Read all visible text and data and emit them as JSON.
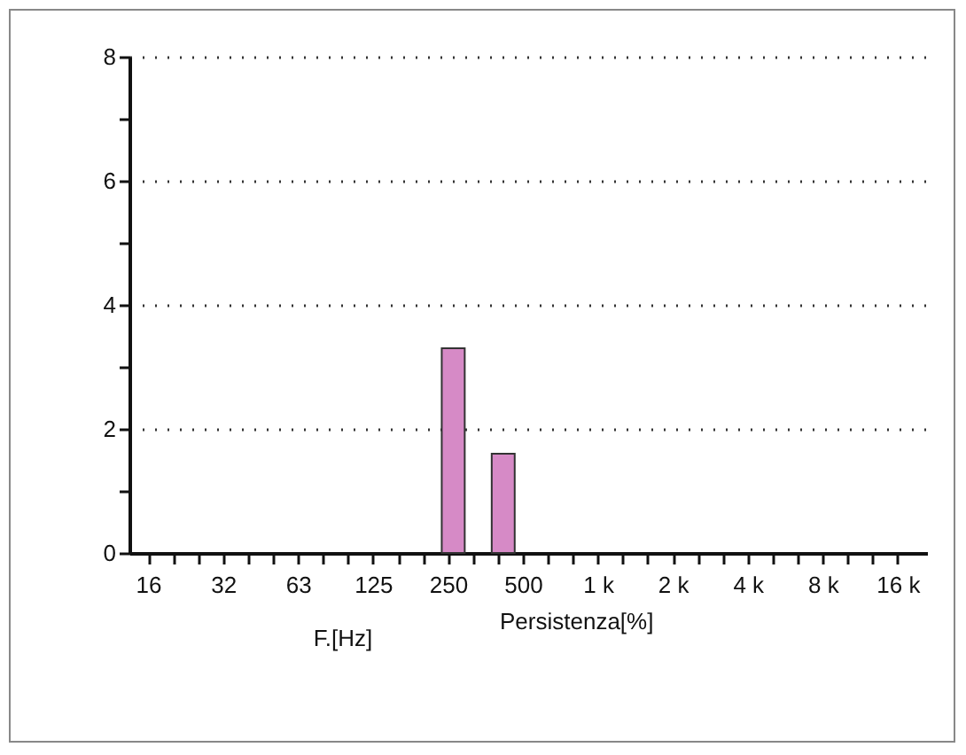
{
  "chart_data": {
    "type": "bar",
    "xlabel": "F.[Hz]",
    "annotations": [
      "Persistenza[%]"
    ],
    "categories": [
      "16",
      null,
      null,
      "32",
      null,
      null,
      "63",
      null,
      null,
      "125",
      null,
      null,
      "250",
      null,
      null,
      "500",
      null,
      null,
      "1 k",
      null,
      null,
      "2 k",
      null,
      null,
      "4 k",
      null,
      null,
      "8 k",
      null,
      null,
      "16 k"
    ],
    "values": [
      0,
      0,
      0,
      0,
      0,
      0,
      0,
      0,
      0,
      0,
      0,
      0,
      3.3,
      0,
      1.6,
      0,
      0,
      0,
      0,
      0,
      0,
      0,
      0,
      0,
      0,
      0,
      0,
      0,
      0,
      0,
      0
    ],
    "color": "#d68ac6",
    "ylim": [
      0,
      8
    ],
    "yticks": [
      0,
      {
        "value": 1,
        "label": null
      },
      2,
      {
        "value": 3,
        "label": null
      },
      4,
      {
        "value": 5,
        "label": null
      },
      6,
      {
        "value": 7,
        "label": null
      },
      8
    ],
    "grid": "y"
  }
}
